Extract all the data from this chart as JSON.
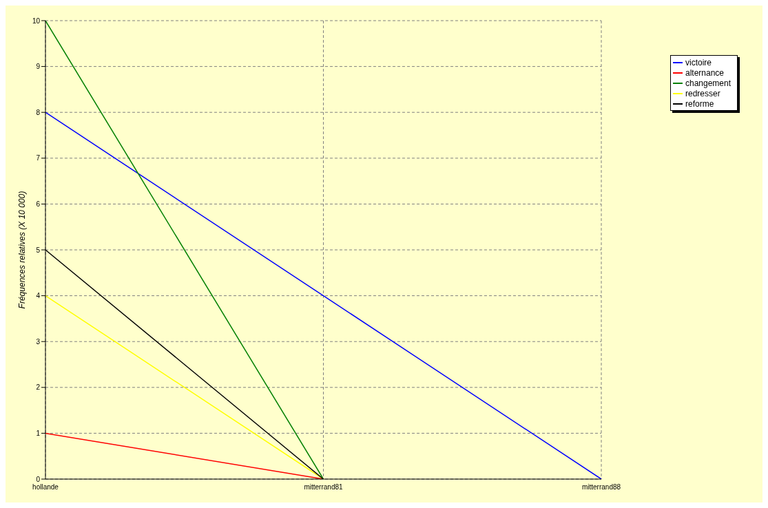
{
  "chart_data": {
    "type": "line",
    "ylabel": "Fréquences relatives (X 10 000)",
    "categories": [
      "hollande",
      "mitterrand81",
      "mitterrand88"
    ],
    "series": [
      {
        "name": "victoire",
        "color": "#0000ff",
        "values": [
          8,
          4,
          0
        ]
      },
      {
        "name": "alternance",
        "color": "#ff0000",
        "values": [
          1,
          0,
          null
        ]
      },
      {
        "name": "changement",
        "color": "#008000",
        "values": [
          10,
          0,
          null
        ]
      },
      {
        "name": "redresser",
        "color": "#ffff00",
        "values": [
          4,
          0,
          null
        ]
      },
      {
        "name": "reforme",
        "color": "#000000",
        "values": [
          5,
          0,
          null
        ]
      }
    ],
    "ylim": [
      0,
      10
    ],
    "yticks": [
      0,
      1,
      2,
      3,
      4,
      5,
      6,
      7,
      8,
      9,
      10
    ],
    "grid": true,
    "legend": "top right",
    "marker": "none",
    "line_style": "solid"
  }
}
